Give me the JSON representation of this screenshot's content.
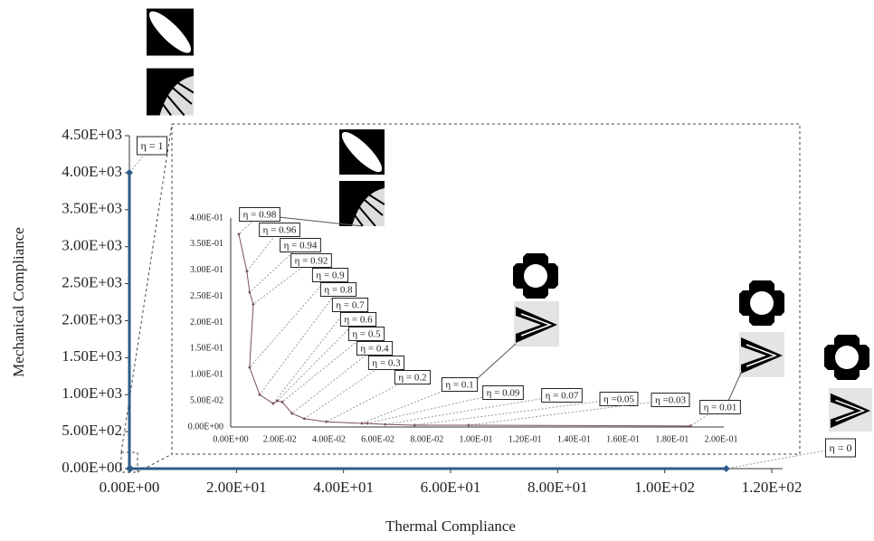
{
  "chart_data": [
    {
      "type": "line",
      "x_label": "Thermal Compliance",
      "y_label": "Mechanical Compliance",
      "series": [
        {
          "color": "#2e5c8a",
          "x": [
            0,
            0.0033,
            0.1875,
            111.5
          ],
          "values": [
            4000,
            0.369,
            0.002,
            0
          ],
          "point_labels": [
            "η = 1",
            null,
            null,
            "η = 0"
          ]
        }
      ],
      "xlim": [
        0,
        120
      ],
      "xticks": [
        {
          "value": 0,
          "label": "0.00E+00"
        },
        {
          "value": 20,
          "label": "2.00E+01"
        },
        {
          "value": 40,
          "label": "4.00E+01"
        },
        {
          "value": 60,
          "label": "6.00E+01"
        },
        {
          "value": 80,
          "label": "8.00E+01"
        },
        {
          "value": 100,
          "label": "1.00E+02"
        },
        {
          "value": 120,
          "label": "1.20E+02"
        }
      ],
      "ylim": [
        0,
        4500
      ],
      "yticks": [
        {
          "value": 0,
          "label": "0.00E+00"
        },
        {
          "value": 500,
          "label": "5.00E+02"
        },
        {
          "value": 1000,
          "label": "1.00E+03"
        },
        {
          "value": 1500,
          "label": "1.50E+03"
        },
        {
          "value": 2000,
          "label": "2.00E+03"
        },
        {
          "value": 2500,
          "label": "2.50E+03"
        },
        {
          "value": 3000,
          "label": "3.00E+03"
        },
        {
          "value": 3500,
          "label": "3.50E+03"
        },
        {
          "value": 4000,
          "label": "4.00E+03"
        },
        {
          "value": 4500,
          "label": "4.50E+03"
        }
      ]
    },
    {
      "type": "line",
      "series": [
        {
          "color": "#7a5060",
          "x": [
            0.0033,
            0.0066,
            0.0077,
            0.0092,
            0.0077,
            0.0118,
            0.0173,
            0.019,
            0.021,
            0.025,
            0.03,
            0.039,
            0.0535,
            0.0557,
            0.063,
            0.075,
            0.097,
            0.1875
          ],
          "values": [
            0.369,
            0.298,
            0.258,
            0.235,
            0.114,
            0.062,
            0.045,
            0.05,
            0.048,
            0.026,
            0.016,
            0.01,
            0.007,
            0.007,
            0.005,
            0.0035,
            0.0035,
            0.002
          ],
          "point_labels": [
            "η = 0.98",
            "η = 0.96",
            "η = 0.94",
            "η = 0.92",
            "η = 0.9",
            "η = 0.8",
            "η = 0.7",
            "η = 0.6",
            "η = 0.5",
            "η = 0.4",
            "η = 0.3",
            "η = 0.2",
            "η = 0.1",
            "η = 0.09",
            "η = 0.07",
            "η =0.05",
            "η =0.03",
            "η = 0.01"
          ]
        }
      ],
      "xlim": [
        0,
        0.2
      ],
      "xticks": [
        {
          "value": 0,
          "label": "0.00E+00"
        },
        {
          "value": 0.02,
          "label": "2.00E-02"
        },
        {
          "value": 0.04,
          "label": "4.00E-02"
        },
        {
          "value": 0.06,
          "label": "6.00E-02"
        },
        {
          "value": 0.08,
          "label": "8.00E-02"
        },
        {
          "value": 0.1,
          "label": "1.00E-01"
        },
        {
          "value": 0.12,
          "label": "1.20E-01"
        },
        {
          "value": 0.14,
          "label": "1.40E-01"
        },
        {
          "value": 0.16,
          "label": "1.60E-01"
        },
        {
          "value": 0.18,
          "label": "1.80E-01"
        },
        {
          "value": 0.2,
          "label": "2.00E-01"
        }
      ],
      "ylim": [
        0,
        0.4
      ],
      "yticks": [
        {
          "value": 0,
          "label": "0.00E+00"
        },
        {
          "value": 0.05,
          "label": "5.00E-02"
        },
        {
          "value": 0.1,
          "label": "1.00E-01"
        },
        {
          "value": 0.15,
          "label": "1.50E-01"
        },
        {
          "value": 0.2,
          "label": "2.00E-01"
        },
        {
          "value": 0.25,
          "label": "2.50E-01"
        },
        {
          "value": 0.3,
          "label": "3.00E-01"
        },
        {
          "value": 0.35,
          "label": "3.50E-01"
        },
        {
          "value": 0.4,
          "label": "4.00E-01"
        }
      ]
    }
  ]
}
